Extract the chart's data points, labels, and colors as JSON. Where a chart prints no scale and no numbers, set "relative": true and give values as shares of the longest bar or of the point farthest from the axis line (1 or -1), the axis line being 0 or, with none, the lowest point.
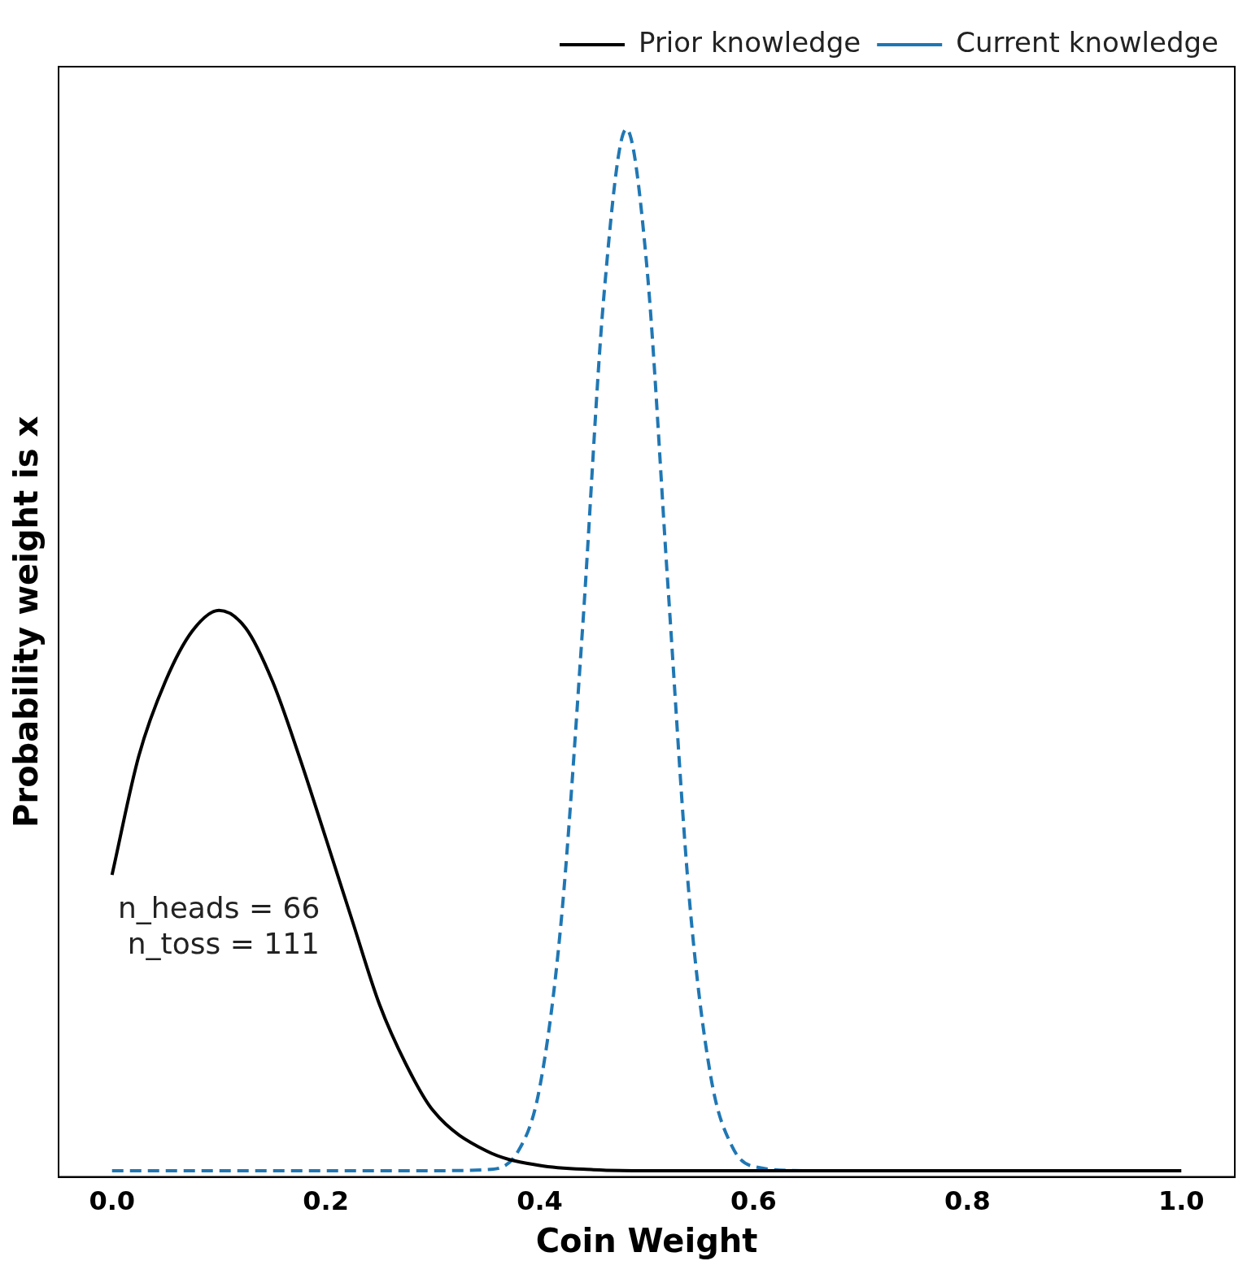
{
  "chart_data": {
    "type": "line",
    "xlabel": "Coin Weight",
    "ylabel": "Probability weight is x",
    "relative": true,
    "xlim": [
      -0.05,
      1.05
    ],
    "xticks": [
      {
        "value": 0,
        "label": "0.0"
      },
      0.2,
      0.4,
      0.6,
      0.8,
      {
        "value": 1,
        "label": "1.0"
      }
    ],
    "legend": "top right",
    "grid": false,
    "marker": "none",
    "annotations": [
      "n_heads = 66\n n_toss = 111"
    ],
    "series": [
      {
        "name": "Prior knowledge",
        "color": "#000000",
        "line_style": "solid",
        "x": [
          0,
          0.025,
          0.05,
          0.075,
          0.1,
          0.125,
          0.15,
          0.175,
          0.2,
          0.225,
          0.25,
          0.275,
          0.3,
          0.35,
          0.4,
          0.45,
          0.5,
          1.0
        ],
        "values": [
          0.284,
          0.398,
          0.47,
          0.518,
          0.538,
          0.521,
          0.47,
          0.398,
          0.319,
          0.239,
          0.16,
          0.102,
          0.058,
          0.019,
          0.005,
          0.001,
          0,
          0
        ]
      },
      {
        "name": "Current knowledge",
        "color": "#1f77b4",
        "line_style": "dashed",
        "x": [
          0,
          0.3,
          0.35,
          0.38,
          0.4,
          0.42,
          0.44,
          0.46,
          0.481,
          0.5,
          0.52,
          0.54,
          0.56,
          0.58,
          0.6,
          0.65,
          1.0
        ],
        "values": [
          0,
          0,
          0.001,
          0.019,
          0.08,
          0.239,
          0.52,
          0.84,
          1,
          0.87,
          0.56,
          0.26,
          0.09,
          0.023,
          0.004,
          0,
          0
        ]
      }
    ]
  }
}
